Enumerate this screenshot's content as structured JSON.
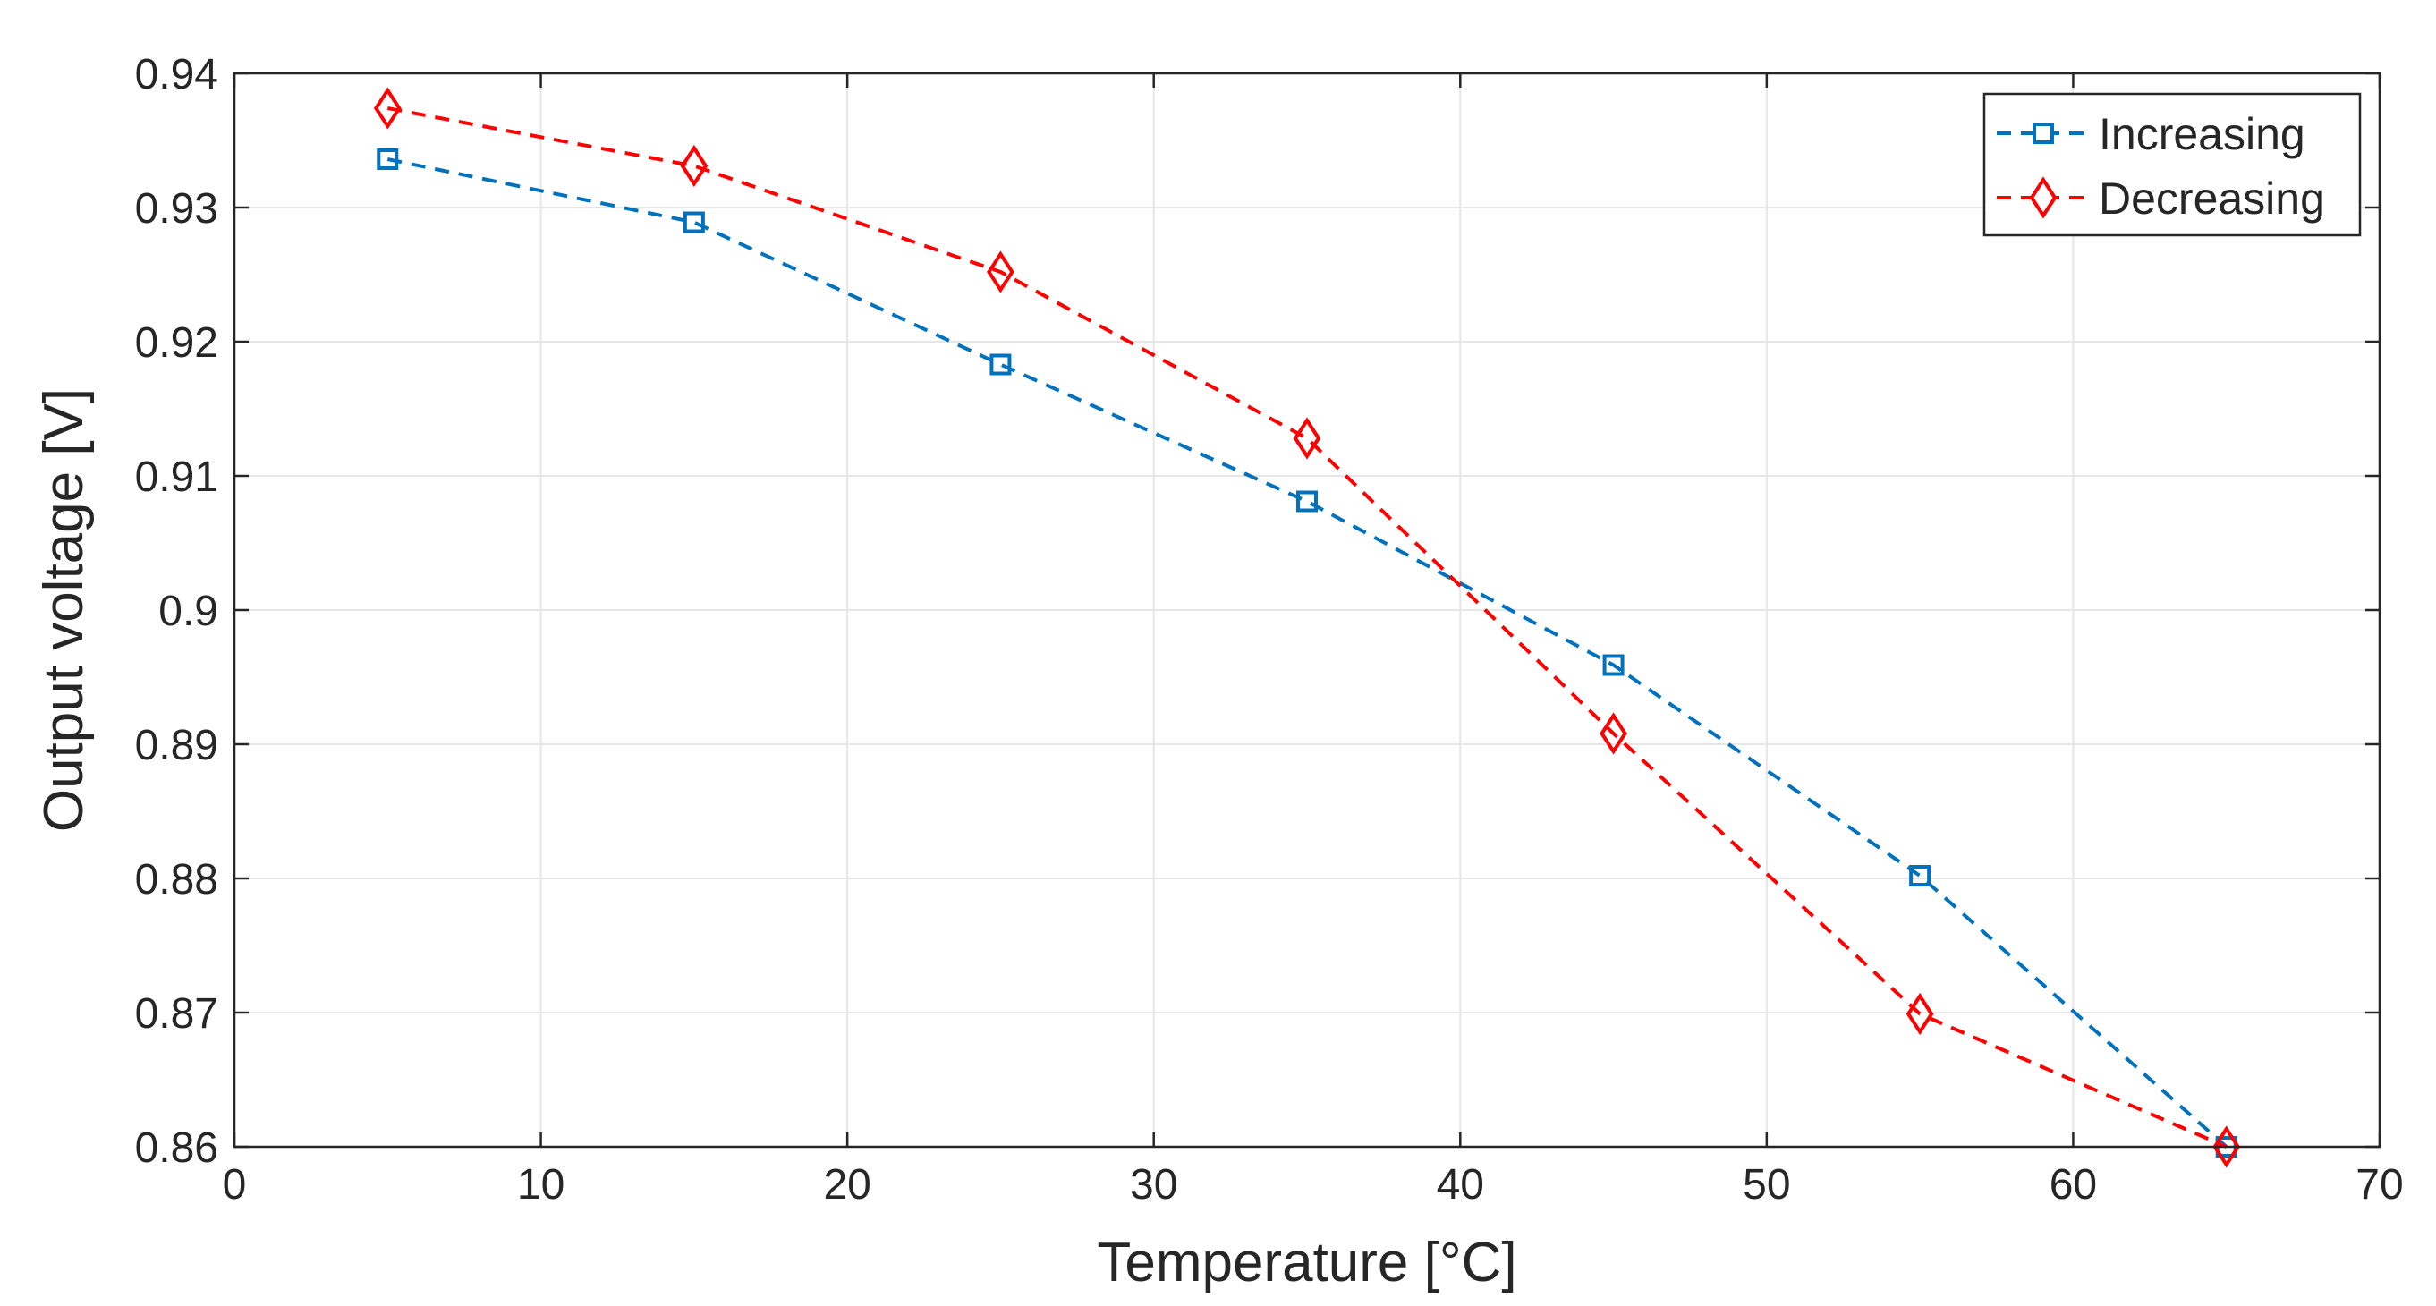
{
  "chart_data": {
    "type": "line",
    "title": "",
    "xlabel": "Temperature [°C]",
    "ylabel": "Output voltage [V]",
    "xlim": [
      0,
      70
    ],
    "ylim": [
      0.86,
      0.94
    ],
    "xticks": [
      0,
      10,
      20,
      30,
      40,
      50,
      60,
      70
    ],
    "yticks": [
      0.86,
      0.87,
      0.88,
      0.89,
      0.9,
      0.91,
      0.92,
      0.93,
      0.94
    ],
    "xtick_labels": [
      "0",
      "10",
      "20",
      "30",
      "40",
      "50",
      "60",
      "70"
    ],
    "ytick_labels": [
      "0.86",
      "0.87",
      "0.88",
      "0.89",
      "0.9",
      "0.91",
      "0.92",
      "0.93",
      "0.94"
    ],
    "grid": true,
    "legend_position": "top-right",
    "x": [
      5,
      15,
      25,
      35,
      45,
      55,
      65
    ],
    "series": [
      {
        "name": "Increasing",
        "color": "#0072BD",
        "marker": "square",
        "line_style": "dashed",
        "values": [
          0.9336,
          0.9289,
          0.9183,
          0.9081,
          0.8959,
          0.8802,
          0.86
        ]
      },
      {
        "name": "Decreasing",
        "color": "#FF0000",
        "marker": "diamond",
        "line_style": "dashed",
        "values": [
          0.9374,
          0.9331,
          0.9252,
          0.9128,
          0.8908,
          0.8699,
          0.86
        ]
      }
    ]
  }
}
